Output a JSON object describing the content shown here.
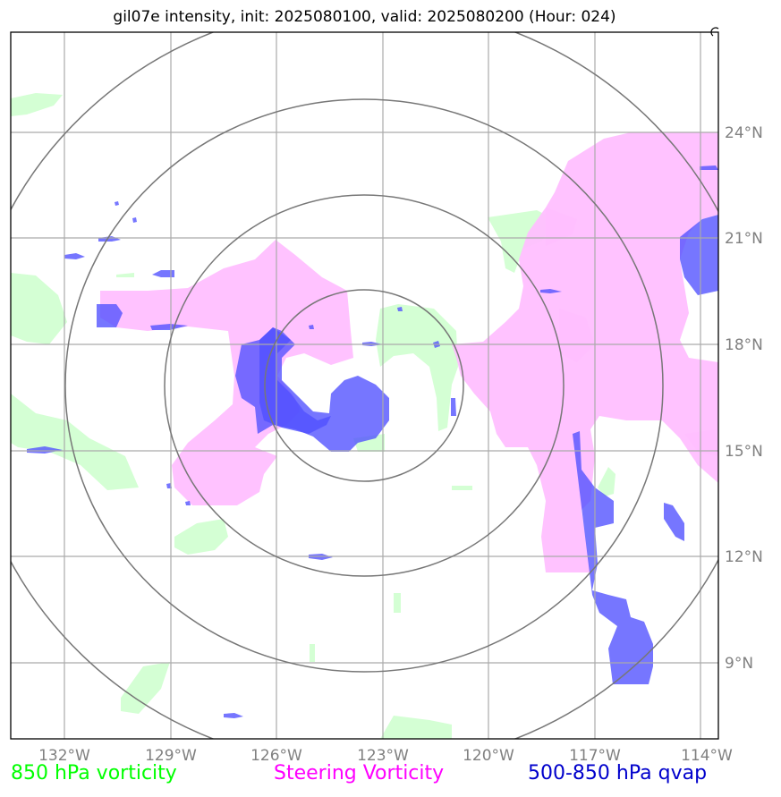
{
  "title": "gil07e intensity, init: 2025080100, valid: 2025080200 (Hour: 024)",
  "map": {
    "lon_ticks": [
      "132°W",
      "129°W",
      "126°W",
      "123°W",
      "120°W",
      "117°W",
      "114°W"
    ],
    "lat_ticks": [
      "24°N",
      "21°N",
      "18°N",
      "15°N",
      "12°N",
      "9°N"
    ],
    "range_rings": 4
  },
  "legend": {
    "vorticity_850": {
      "label": "850 hPa vorticity",
      "color": "#00ff00"
    },
    "steering": {
      "label": "Steering Vorticity",
      "color": "#ff00ff"
    },
    "qvap": {
      "label": "500-850 hPa qvap",
      "color": "#0000cc"
    }
  },
  "colors": {
    "green_fill": "#ccffcc",
    "pink_fill": "#ffbfff",
    "blue_fill": "#6666ff",
    "grid": "#aaaaaa",
    "ring": "#777777"
  }
}
